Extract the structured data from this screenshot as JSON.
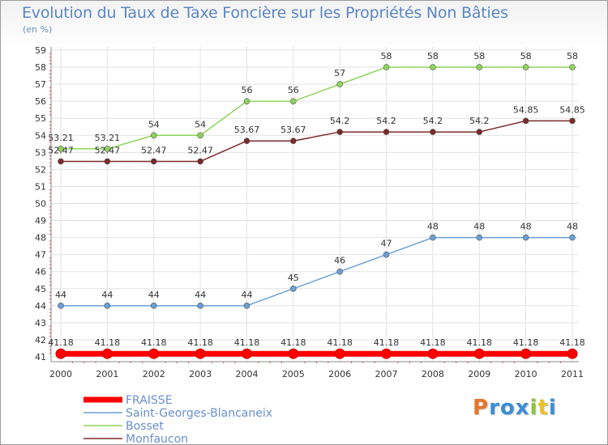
{
  "header": {
    "title": "Evolution du Taux de Taxe Foncière sur les Propriétés Non Bâties",
    "subtitle": "(en %)"
  },
  "brand": {
    "letters": [
      "P",
      "r",
      "o",
      "x",
      "i",
      "t",
      "i"
    ],
    "colors": [
      "#e8742c",
      "#3a8fd6",
      "#3a8fd6",
      "#3a8fd6",
      "#8cc63e",
      "#e8c12c",
      "#3a8fd6"
    ]
  },
  "chart_data": {
    "type": "line",
    "title": "Evolution du Taux de Taxe Foncière sur les Propriétés Non Bâties",
    "ylabel": "(en %)",
    "xlabel": "",
    "x": [
      "2000",
      "2001",
      "2002",
      "2003",
      "2004",
      "2005",
      "2006",
      "2007",
      "2008",
      "2009",
      "2010",
      "2011"
    ],
    "ylim": [
      41,
      59
    ],
    "yticks": [
      "41",
      "42",
      "43",
      "44",
      "45",
      "46",
      "47",
      "48",
      "49",
      "50",
      "51",
      "52",
      "53",
      "54",
      "55",
      "56",
      "57",
      "58",
      "59"
    ],
    "grid": true,
    "legend_position": "bottom-left",
    "series": [
      {
        "name": "FRAISSE",
        "color": "#ff0000",
        "values": [
          41.18,
          41.18,
          41.18,
          41.18,
          41.18,
          41.18,
          41.18,
          41.18,
          41.18,
          41.18,
          41.18,
          41.18
        ],
        "labels": [
          "41.18",
          "41.18",
          "41.18",
          "41.18",
          "41.18",
          "41.18",
          "41.18",
          "41.18",
          "41.18",
          "41.18",
          "41.18",
          "41.18"
        ]
      },
      {
        "name": "Saint-Georges-Blancaneix",
        "color": "#6a9fd4",
        "values": [
          44,
          44,
          44,
          44,
          44,
          45,
          46,
          47,
          48,
          48,
          48,
          48
        ],
        "labels": [
          "44",
          "44",
          "44",
          "44",
          "44",
          "45",
          "46",
          "47",
          "48",
          "48",
          "48",
          "48"
        ]
      },
      {
        "name": "Bosset",
        "color": "#8ed45a",
        "values": [
          53.21,
          53.21,
          54,
          54,
          56,
          56,
          57,
          58,
          58,
          58,
          58,
          58
        ],
        "labels": [
          "53.21",
          "53.21",
          "54",
          "54",
          "56",
          "56",
          "57",
          "58",
          "58",
          "58",
          "58",
          "58"
        ]
      },
      {
        "name": "Monfaucon",
        "color": "#7a2a2a",
        "values": [
          52.47,
          52.47,
          52.47,
          52.47,
          53.67,
          53.67,
          54.2,
          54.2,
          54.2,
          54.2,
          54.85,
          54.85
        ],
        "labels": [
          "52.47",
          "52.47",
          "52.47",
          "52.47",
          "53.67",
          "53.67",
          "54.2",
          "54.2",
          "54.2",
          "54.2",
          "54.85",
          "54.85"
        ]
      }
    ]
  }
}
